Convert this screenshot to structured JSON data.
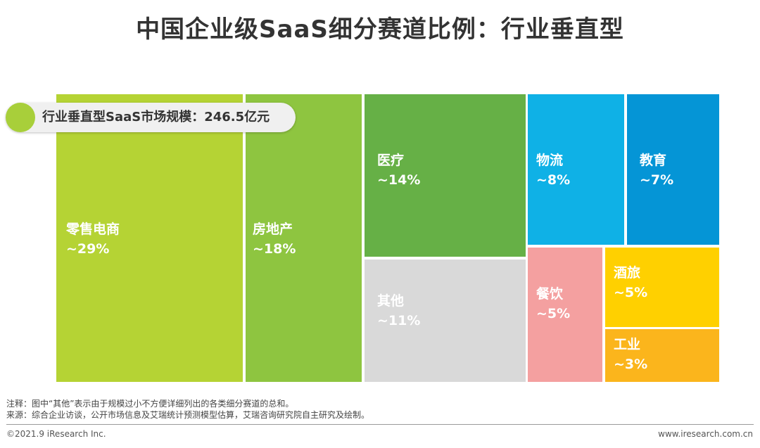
{
  "title": "中国企业级SaaS细分赛道比例：行业垂直型",
  "market_size_label": "行业垂直型SaaS市场规模：246.5亿元",
  "chart_data": {
    "type": "treemap",
    "title": "中国企业级SaaS细分赛道比例：行业垂直型",
    "total": "246.5亿元",
    "cells": [
      {
        "name": "零售电商",
        "label": "~29%",
        "value": 29,
        "color": "#b5d334"
      },
      {
        "name": "房地产",
        "label": "~18%",
        "value": 18,
        "color": "#8ec540"
      },
      {
        "name": "医疗",
        "label": "~14%",
        "value": 14,
        "color": "#66b046"
      },
      {
        "name": "其他",
        "label": "~11%",
        "value": 11,
        "color": "#d9d9d9"
      },
      {
        "name": "物流",
        "label": "~8%",
        "value": 8,
        "color": "#0fb1e6"
      },
      {
        "name": "教育",
        "label": "~7%",
        "value": 7,
        "color": "#0595d6"
      },
      {
        "name": "餐饮",
        "label": "~5%",
        "value": 5,
        "color": "#f4a0a0"
      },
      {
        "name": "酒旅",
        "label": "~5%",
        "value": 5,
        "color": "#ffd000"
      },
      {
        "name": "工业",
        "label": "~3%",
        "value": 3,
        "color": "#fbb51c"
      }
    ]
  },
  "notes": {
    "note": "注释：图中“其他”表示由于规模过小不方便详细列出的各类细分赛道的总和。",
    "source": "来源：综合企业访谈，公开市场信息及艾瑞统计预测模型估算，艾瑞咨询研究院自主研究及绘制。"
  },
  "footer": {
    "copyright": "©2021.9 iResearch Inc.",
    "url": "www.iresearch.com.cn"
  }
}
